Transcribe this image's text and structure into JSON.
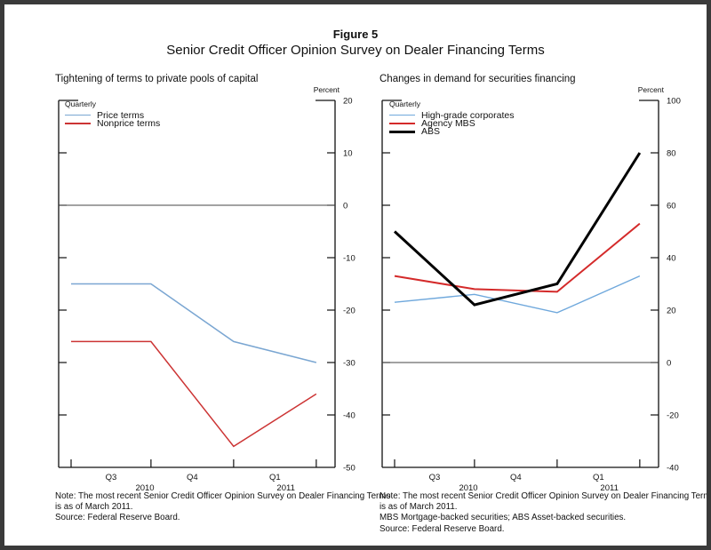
{
  "figure": {
    "label": "Figure 5",
    "title": "Senior Credit Officer Opinion Survey on Dealer Financing Terms"
  },
  "panels": [
    {
      "title": "Tightening of terms to private pools of capital",
      "percent_label": "Percent",
      "quarterly_label": "Quarterly",
      "notes": [
        "Note: The most recent Senior Credit Officer Opinion Survey on Dealer Financing Terms",
        "is as of March 2011.",
        "Source: Federal Reserve Board."
      ]
    },
    {
      "title": "Changes in demand for securities financing",
      "percent_label": "Percent",
      "quarterly_label": "Quarterly",
      "notes": [
        "Note: The most recent Senior Credit Officer Opinion Survey on Dealer Financing Terms",
        "is as of March 2011.",
        "MBS  Mortgage-backed securities; ABS  Asset-backed securities.",
        "Source: Federal Reserve Board."
      ]
    }
  ],
  "chart_data": [
    {
      "type": "line",
      "title": "Tightening of terms to private pools of capital",
      "frequency": "Quarterly",
      "ylabel": "Percent",
      "ylim": [
        -50,
        20
      ],
      "ytick_step": 10,
      "zero_line": true,
      "x_tick_labels": [
        "Q3",
        "Q4",
        "Q1"
      ],
      "year_labels": [
        "2010",
        "2011"
      ],
      "legend_position": "top-left",
      "series": [
        {
          "name": "Price terms",
          "color": "#7aa6d2",
          "width": 1.5,
          "values": [
            -15,
            -15,
            -26,
            -30
          ]
        },
        {
          "name": "Nonprice terms",
          "color": "#cc3434",
          "width": 1.5,
          "values": [
            -26,
            -26,
            -46,
            -36
          ]
        }
      ]
    },
    {
      "type": "line",
      "title": "Changes in demand for securities financing",
      "frequency": "Quarterly",
      "ylabel": "Percent",
      "ylim": [
        -40,
        100
      ],
      "ytick_step": 20,
      "zero_line": true,
      "x_tick_labels": [
        "Q3",
        "Q4",
        "Q1"
      ],
      "year_labels": [
        "2010",
        "2011"
      ],
      "legend_position": "top-left",
      "series": [
        {
          "name": "High-grade corporates",
          "color": "#6fa8dc",
          "width": 1.4,
          "values": [
            23,
            26,
            19,
            33
          ]
        },
        {
          "name": "Agency MBS",
          "color": "#d42a2a",
          "width": 2.0,
          "values": [
            33,
            28,
            27,
            53
          ]
        },
        {
          "name": "ABS",
          "color": "#000000",
          "width": 3.0,
          "values": [
            50,
            22,
            30,
            80
          ]
        }
      ]
    }
  ]
}
